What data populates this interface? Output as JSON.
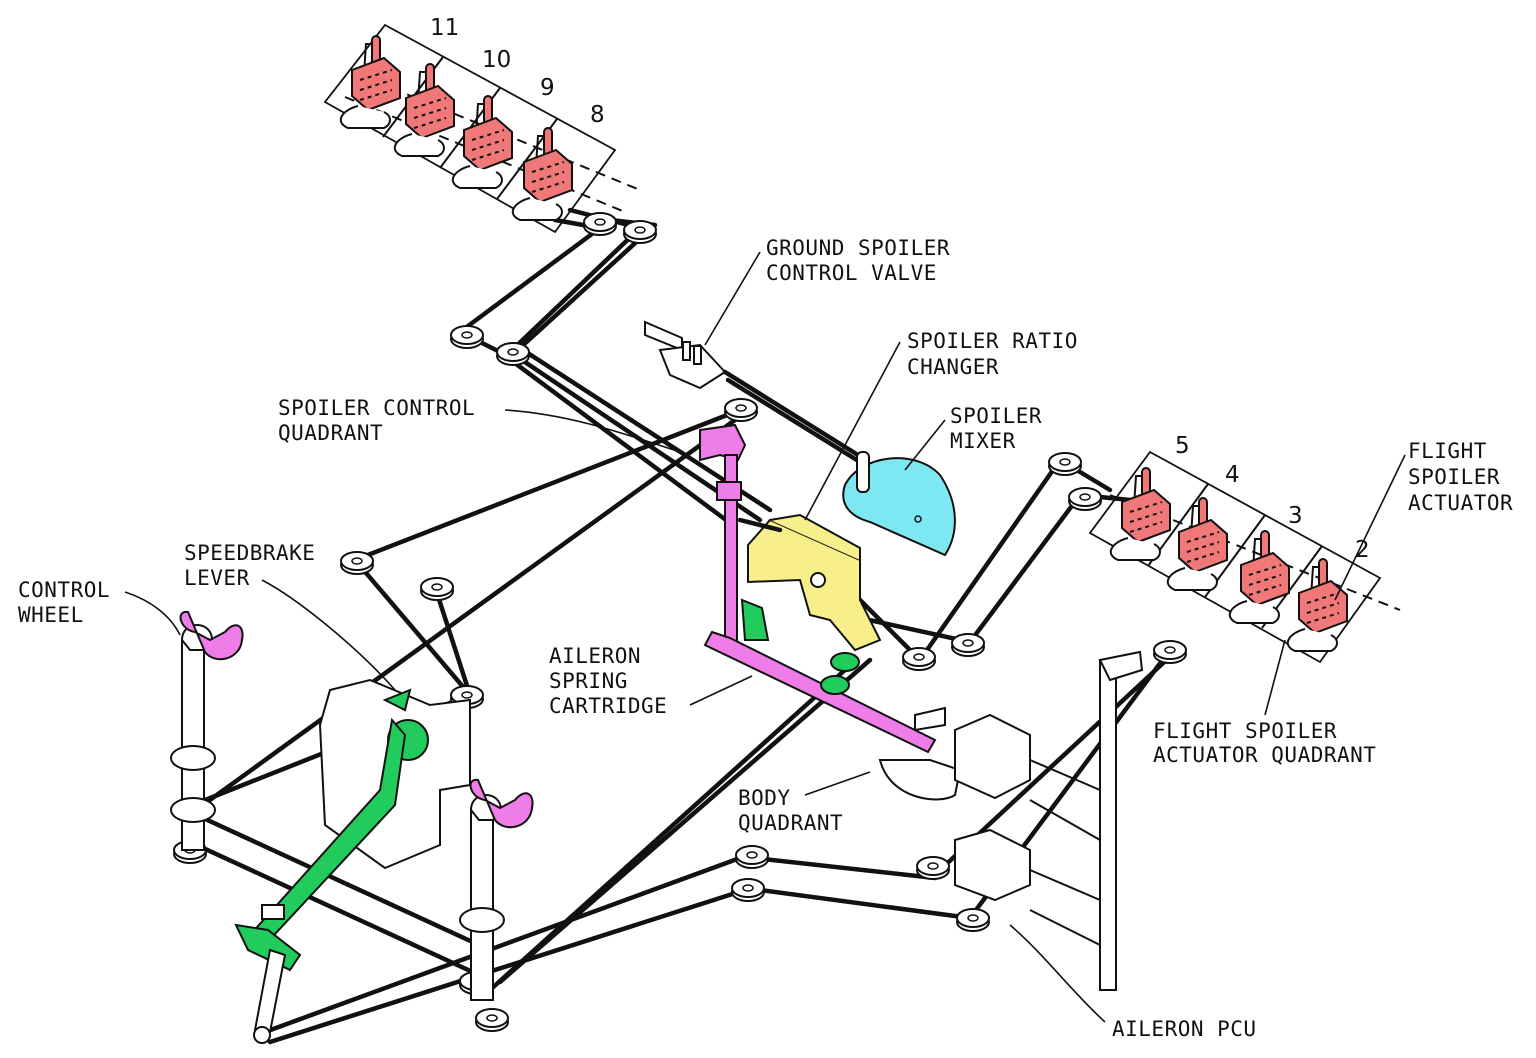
{
  "colors": {
    "actuator": "#f07878",
    "mixer": "#7ee8f2",
    "ratio_changer": "#f7f08a",
    "spoiler_quadrant": "#ee7de8",
    "speedbrake_linkage": "#22cc5c",
    "cable": "#111111",
    "background": "#ffffff"
  },
  "labels": {
    "ground_spoiler_valve": [
      "GROUND SPOILER",
      "CONTROL VALVE"
    ],
    "spoiler_ratio_changer": [
      "SPOILER RATIO",
      "CHANGER"
    ],
    "spoiler_mixer": [
      "SPOILER",
      "MIXER"
    ],
    "spoiler_control_quadrant": [
      "SPOILER CONTROL",
      "QUADRANT"
    ],
    "speedbrake_lever": [
      "SPEEDBRAKE",
      "LEVER"
    ],
    "control_wheel": [
      "CONTROL",
      "WHEEL"
    ],
    "aileron_spring_cartridge": [
      "AILERON",
      "SPRING",
      "CARTRIDGE"
    ],
    "body_quadrant": [
      "BODY",
      "QUADRANT"
    ],
    "flight_spoiler_actuator": [
      "FLIGHT",
      "SPOILER",
      "ACTUATOR"
    ],
    "flight_spoiler_actuator_quadrant": [
      "FLIGHT SPOILER",
      "ACTUATOR QUADRANT"
    ],
    "aileron_pcu": [
      "AILERON PCU"
    ]
  },
  "spoiler_numbers": {
    "left": [
      "11",
      "10",
      "9",
      "8"
    ],
    "right": [
      "5",
      "4",
      "3",
      "2"
    ]
  },
  "icons": {
    "actuator": "spoiler-actuator-icon",
    "pulley": "pulley-icon",
    "wheel": "control-wheel-icon"
  }
}
